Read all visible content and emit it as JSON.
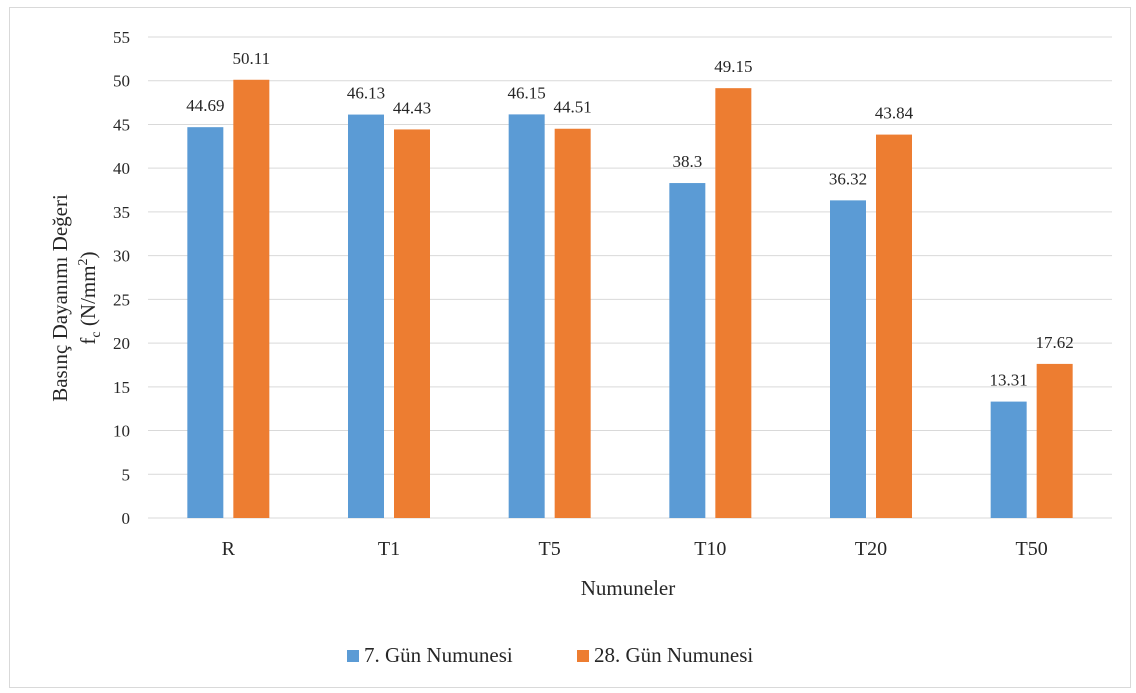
{
  "chart_data": {
    "type": "bar",
    "title": "",
    "xlabel": "Numuneler",
    "ylabel_line1": "Basınç Dayanımı Değeri",
    "ylabel_line2": {
      "base": "f",
      "sub": "c",
      "mid": " (N/mm",
      "sup": "2",
      "end": ")"
    },
    "categories": [
      "R",
      "T1",
      "T5",
      "T10",
      "T20",
      "T50"
    ],
    "series": [
      {
        "name": "7. Gün Numunesi",
        "color": "#5b9bd5",
        "values": [
          44.69,
          46.13,
          46.15,
          38.3,
          36.32,
          13.31
        ],
        "labels": [
          "44.69",
          "46.13",
          "46.15",
          "38.3",
          "36.32",
          "13.31"
        ]
      },
      {
        "name": "28. Gün Numunesi",
        "color": "#ed7d31",
        "values": [
          50.11,
          44.43,
          44.51,
          49.15,
          43.84,
          17.62
        ],
        "labels": [
          "50.11",
          "44.43",
          "44.51",
          "49.15",
          "43.84",
          "17.62"
        ]
      }
    ],
    "ylim": [
      0,
      55
    ],
    "yticks": [
      0,
      5,
      10,
      15,
      20,
      25,
      30,
      35,
      40,
      45,
      50,
      55
    ],
    "grid": true,
    "legend_position": "bottom",
    "gridline_color": "#d9d9d9"
  }
}
